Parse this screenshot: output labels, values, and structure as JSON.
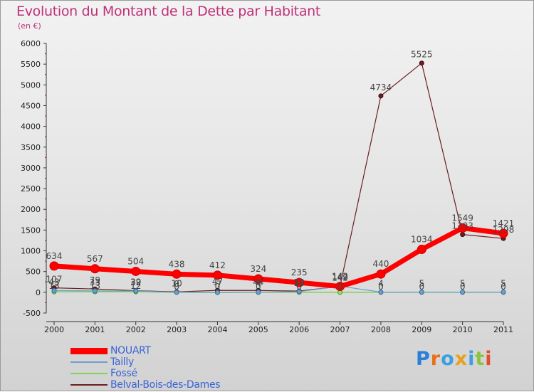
{
  "title": "Evolution du Montant de la Dette par Habitant",
  "unit": "(en €)",
  "logo": "Proxiti",
  "chart_data": {
    "type": "line",
    "x": [
      2000,
      2001,
      2002,
      2003,
      2004,
      2005,
      2006,
      2007,
      2008,
      2009,
      2010,
      2011
    ],
    "ylim": [
      -500,
      6000
    ],
    "yticks": [
      -500,
      0,
      500,
      1000,
      1500,
      2000,
      2500,
      3000,
      3500,
      4000,
      4500,
      5000,
      5500,
      6000
    ],
    "grid": false,
    "legend_position": "bottom-left",
    "series": [
      {
        "name": "NOUART",
        "color": "#ff0000",
        "values": [
          634,
          567,
          504,
          438,
          412,
          324,
          235,
          142,
          440,
          1034,
          1549,
          1421
        ]
      },
      {
        "name": "Tailly",
        "color": "#6c9fcf",
        "values": [
          43,
          33,
          32,
          0,
          -7,
          4,
          16,
          149,
          4,
          5,
          5,
          5
        ]
      },
      {
        "name": "Fossé",
        "color": "#7fd35a",
        "values": [
          13,
          13,
          12,
          0,
          0,
          0,
          0,
          0,
          0,
          0,
          0,
          0
        ]
      },
      {
        "name": "Belval-Bois-des-Dames",
        "color": "#6b1e22",
        "values": [
          107,
          79,
          39,
          10,
          47,
          44,
          30,
          142,
          4734,
          5525,
          1393,
          1298
        ]
      }
    ]
  }
}
